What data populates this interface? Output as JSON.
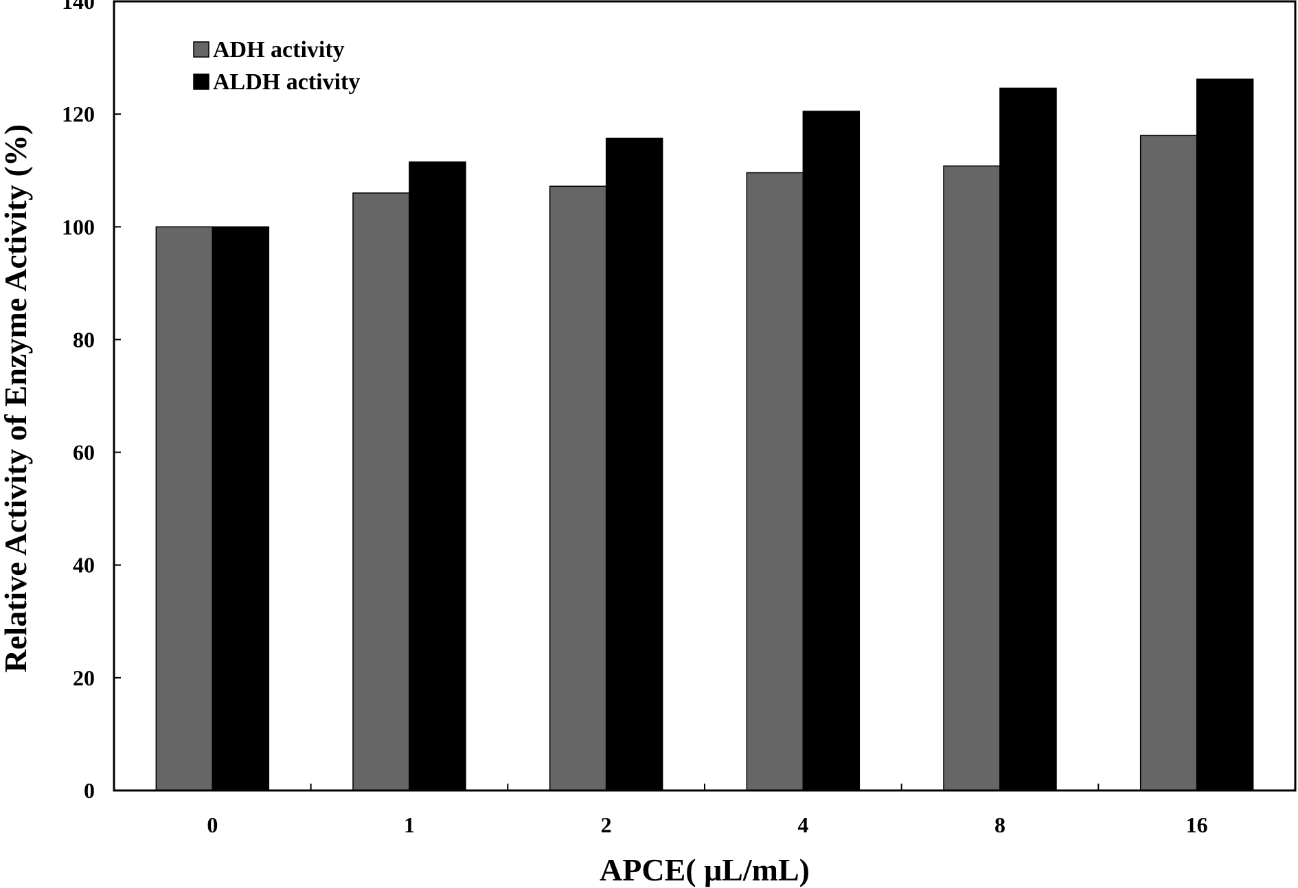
{
  "chart_data": {
    "type": "bar",
    "categories": [
      "0",
      "1",
      "2",
      "4",
      "8",
      "16"
    ],
    "series": [
      {
        "name": "ADH activity",
        "values": [
          100,
          106,
          107.2,
          109.6,
          110.8,
          116.2
        ],
        "color": "#666666"
      },
      {
        "name": "ALDH activity",
        "values": [
          100,
          111.5,
          115.7,
          120.5,
          124.6,
          126.2
        ],
        "color": "#000000"
      }
    ],
    "xlabel": "APCE( μL/mL)",
    "ylabel": "Relative Activity of Enzyme Activity (%)",
    "ylim": [
      0,
      140
    ],
    "yticks": [
      0,
      20,
      40,
      60,
      80,
      100,
      120,
      140
    ],
    "grid": false,
    "legend_position": "top-left"
  }
}
